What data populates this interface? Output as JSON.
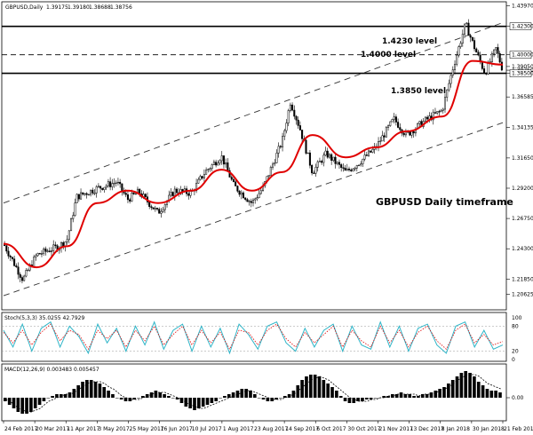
{
  "chart_data": [
    {
      "type": "candlestick",
      "title": "GBPUSD,Daily",
      "ohlc_header": [
        "1.39175",
        "1.39180",
        "1.38688",
        "1.38756"
      ],
      "annotation": "GBPUSD Daily timeframe",
      "ylim": [
        1.195,
        1.44
      ],
      "y_ticks": [
        "1.43970",
        "1.42300",
        "1.40000",
        "1.39050",
        "1.38750",
        "1.38500",
        "1.36585",
        "1.34135",
        "1.31650",
        "1.29200",
        "1.26750",
        "1.24300",
        "1.21850",
        "1.20625"
      ],
      "x_ticks": [
        "24 Feb 2017",
        "20 Mar 2017",
        "11 Apr 2017",
        "3 May 2017",
        "25 May 2017",
        "16 Jun 2017",
        "10 Jul 2017",
        "1 Aug 2017",
        "23 Aug 2017",
        "14 Sep 2017",
        "6 Oct 2017",
        "30 Oct 2017",
        "21 Nov 2017",
        "13 Dec 2017",
        "8 Jan 2018",
        "30 Jan 2018",
        "21 Feb 2018"
      ],
      "levels": [
        {
          "value": 1.423,
          "label": "1.4230 level",
          "style": "solid"
        },
        {
          "value": 1.4,
          "label": "1.4000 level",
          "style": "dashed"
        },
        {
          "value": 1.385,
          "label": "1.3850 level",
          "style": "solid"
        }
      ],
      "channel": {
        "upper": [
          {
            "date": "24 Feb 2017",
            "y": 1.28
          },
          {
            "date": "21 Feb 2018",
            "y": 1.426
          }
        ],
        "lower": [
          {
            "date": "24 Feb 2017",
            "y": 1.205
          },
          {
            "date": "21 Feb 2018",
            "y": 1.345
          }
        ]
      },
      "close_series": [
        {
          "date": "24 Feb 2017",
          "y": 1.247
        },
        {
          "date": "10 Mar 2017",
          "y": 1.218
        },
        {
          "date": "20 Mar 2017",
          "y": 1.238
        },
        {
          "date": "5 Apr 2017",
          "y": 1.245
        },
        {
          "date": "11 Apr 2017",
          "y": 1.25
        },
        {
          "date": "18 Apr 2017",
          "y": 1.285
        },
        {
          "date": "3 May 2017",
          "y": 1.292
        },
        {
          "date": "17 May 2017",
          "y": 1.297
        },
        {
          "date": "25 May 2017",
          "y": 1.283
        },
        {
          "date": "2 Jun 2017",
          "y": 1.289
        },
        {
          "date": "16 Jun 2017",
          "y": 1.272
        },
        {
          "date": "28 Jun 2017",
          "y": 1.29
        },
        {
          "date": "10 Jul 2017",
          "y": 1.288
        },
        {
          "date": "20 Jul 2017",
          "y": 1.305
        },
        {
          "date": "1 Aug 2017",
          "y": 1.318
        },
        {
          "date": "10 Aug 2017",
          "y": 1.294
        },
        {
          "date": "23 Aug 2017",
          "y": 1.28
        },
        {
          "date": "31 Aug 2017",
          "y": 1.292
        },
        {
          "date": "14 Sep 2017",
          "y": 1.33
        },
        {
          "date": "20 Sep 2017",
          "y": 1.362
        },
        {
          "date": "27 Sep 2017",
          "y": 1.34
        },
        {
          "date": "6 Oct 2017",
          "y": 1.305
        },
        {
          "date": "16 Oct 2017",
          "y": 1.32
        },
        {
          "date": "30 Oct 2017",
          "y": 1.305
        },
        {
          "date": "8 Nov 2017",
          "y": 1.312
        },
        {
          "date": "21 Nov 2017",
          "y": 1.325
        },
        {
          "date": "4 Dec 2017",
          "y": 1.348
        },
        {
          "date": "13 Dec 2017",
          "y": 1.335
        },
        {
          "date": "27 Dec 2017",
          "y": 1.347
        },
        {
          "date": "8 Jan 2018",
          "y": 1.355
        },
        {
          "date": "16 Jan 2018",
          "y": 1.39
        },
        {
          "date": "25 Jan 2018",
          "y": 1.425
        },
        {
          "date": "30 Jan 2018",
          "y": 1.41
        },
        {
          "date": "8 Feb 2018",
          "y": 1.385
        },
        {
          "date": "16 Feb 2018",
          "y": 1.405
        },
        {
          "date": "21 Feb 2018",
          "y": 1.3875
        }
      ],
      "ma_series": [
        {
          "date": "24 Feb 2017",
          "y": 1.247
        },
        {
          "date": "20 Mar 2017",
          "y": 1.228
        },
        {
          "date": "11 Apr 2017",
          "y": 1.245
        },
        {
          "date": "3 May 2017",
          "y": 1.28
        },
        {
          "date": "25 May 2017",
          "y": 1.29
        },
        {
          "date": "16 Jun 2017",
          "y": 1.28
        },
        {
          "date": "10 Jul 2017",
          "y": 1.29
        },
        {
          "date": "1 Aug 2017",
          "y": 1.307
        },
        {
          "date": "23 Aug 2017",
          "y": 1.29
        },
        {
          "date": "14 Sep 2017",
          "y": 1.305
        },
        {
          "date": "6 Oct 2017",
          "y": 1.335
        },
        {
          "date": "30 Oct 2017",
          "y": 1.317
        },
        {
          "date": "21 Nov 2017",
          "y": 1.325
        },
        {
          "date": "13 Dec 2017",
          "y": 1.338
        },
        {
          "date": "8 Jan 2018",
          "y": 1.35
        },
        {
          "date": "30 Jan 2018",
          "y": 1.395
        },
        {
          "date": "21 Feb 2018",
          "y": 1.392
        }
      ],
      "colors": {
        "ma": "#e00000",
        "candles": "#000000",
        "levels": "#000000"
      }
    },
    {
      "type": "line",
      "title": "Stoch(5,3,3) 35.0255 42.7929",
      "y_ticks": [
        "100",
        "80",
        "20",
        "0"
      ],
      "ylim": [
        0,
        100
      ],
      "series": [
        {
          "color": "#2fb5c8",
          "style": "solid",
          "values": [
            70,
            30,
            85,
            20,
            75,
            90,
            30,
            80,
            55,
            15,
            85,
            40,
            75,
            20,
            80,
            35,
            90,
            25,
            70,
            85,
            20,
            80,
            30,
            75,
            15,
            85,
            60,
            25,
            80,
            90,
            40,
            20,
            75,
            30,
            70,
            85,
            20,
            80,
            35,
            25,
            90,
            30,
            80,
            20,
            75,
            85,
            35,
            15,
            80,
            90,
            30,
            70,
            25,
            35
          ]
        },
        {
          "color": "#e00000",
          "style": "dotted",
          "values": [
            65,
            40,
            70,
            35,
            65,
            85,
            45,
            70,
            60,
            25,
            70,
            50,
            70,
            30,
            70,
            45,
            80,
            35,
            60,
            80,
            35,
            70,
            40,
            65,
            25,
            70,
            65,
            35,
            70,
            85,
            50,
            30,
            65,
            40,
            60,
            80,
            30,
            70,
            45,
            30,
            80,
            40,
            70,
            30,
            65,
            80,
            45,
            25,
            70,
            85,
            40,
            60,
            35,
            43
          ]
        }
      ]
    },
    {
      "type": "bar",
      "title": "MACD(12,26,9) 0.003483 0.005457",
      "y_ticks": [
        "0.00"
      ],
      "ylim": [
        -0.012,
        0.016
      ],
      "values": [
        -0.002,
        -0.004,
        -0.006,
        -0.008,
        -0.009,
        -0.009,
        -0.008,
        -0.006,
        -0.004,
        -0.002,
        0.0,
        0.001,
        0.002,
        0.002,
        0.002,
        0.003,
        0.005,
        0.007,
        0.009,
        0.01,
        0.01,
        0.009,
        0.008,
        0.006,
        0.004,
        0.002,
        0.0,
        -0.001,
        -0.002,
        -0.002,
        -0.001,
        0.0,
        0.001,
        0.002,
        0.003,
        0.004,
        0.003,
        0.002,
        0.001,
        0.0,
        -0.001,
        -0.003,
        -0.005,
        -0.006,
        -0.007,
        -0.006,
        -0.005,
        -0.004,
        -0.003,
        -0.002,
        0.0,
        0.001,
        0.002,
        0.003,
        0.004,
        0.005,
        0.005,
        0.004,
        0.002,
        0.0,
        -0.001,
        -0.002,
        -0.002,
        -0.001,
        0.0,
        0.001,
        0.002,
        0.004,
        0.007,
        0.01,
        0.012,
        0.013,
        0.013,
        0.012,
        0.01,
        0.008,
        0.006,
        0.004,
        0.001,
        -0.002,
        -0.003,
        -0.003,
        -0.002,
        -0.002,
        -0.001,
        -0.001,
        0.0,
        0.0,
        0.001,
        0.001,
        0.002,
        0.002,
        0.003,
        0.002,
        0.002,
        0.001,
        0.001,
        0.002,
        0.002,
        0.003,
        0.004,
        0.005,
        0.006,
        0.008,
        0.01,
        0.012,
        0.014,
        0.015,
        0.014,
        0.012,
        0.009,
        0.007,
        0.005,
        0.004,
        0.004,
        0.003
      ],
      "signal": [
        -0.001,
        -0.002,
        -0.004,
        -0.006,
        -0.007,
        -0.008,
        -0.008,
        -0.007,
        -0.006,
        -0.004,
        -0.002,
        -0.001,
        0.0,
        0.001,
        0.002,
        0.002,
        0.003,
        0.005,
        0.006,
        0.008,
        0.009,
        0.009,
        0.009,
        0.008,
        0.006,
        0.005,
        0.003,
        0.001,
        0.0,
        -0.001,
        -0.001,
        -0.001,
        0.0,
        0.001,
        0.002,
        0.003,
        0.003,
        0.003,
        0.002,
        0.001,
        0.0,
        -0.001,
        -0.003,
        -0.004,
        -0.005,
        -0.006,
        -0.006,
        -0.005,
        -0.004,
        -0.003,
        -0.002,
        -0.001,
        0.0,
        0.001,
        0.002,
        0.003,
        0.004,
        0.004,
        0.003,
        0.002,
        0.001,
        0.0,
        -0.001,
        -0.001,
        -0.001,
        0.0,
        0.001,
        0.002,
        0.004,
        0.006,
        0.008,
        0.01,
        0.011,
        0.012,
        0.011,
        0.01,
        0.008,
        0.006,
        0.004,
        0.002,
        0.0,
        -0.001,
        -0.002,
        -0.002,
        -0.002,
        -0.001,
        -0.001,
        0.0,
        0.0,
        0.001,
        0.001,
        0.002,
        0.002,
        0.002,
        0.002,
        0.002,
        0.001,
        0.002,
        0.002,
        0.002,
        0.003,
        0.004,
        0.005,
        0.006,
        0.008,
        0.01,
        0.011,
        0.013,
        0.013,
        0.013,
        0.012,
        0.01,
        0.008,
        0.007,
        0.006,
        0.005
      ]
    }
  ]
}
